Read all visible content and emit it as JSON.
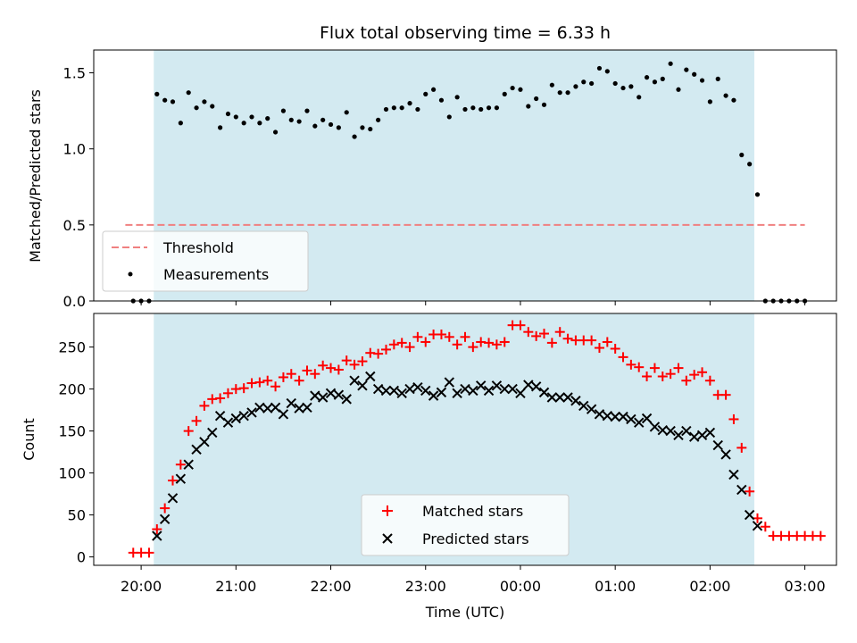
{
  "chart_data": [
    {
      "type": "scatter",
      "title": "Flux total observing time = 6.33 h",
      "xlabel": "",
      "ylabel": "Matched/Predicted stars",
      "ylim": [
        0,
        1.65
      ],
      "yticks": [
        0.0,
        0.5,
        1.0,
        1.5
      ],
      "ytick_labels": [
        "0.0",
        "0.5",
        "1.0",
        "1.5"
      ],
      "shaded_span": [
        "20:08",
        "02:28"
      ],
      "shade_color": "#d3eaf1",
      "threshold": {
        "name": "Threshold",
        "value": 0.5,
        "x_range": [
          "19:50",
          "03:00"
        ],
        "color": "#f08080"
      },
      "legend": {
        "position": "lower-left",
        "entries": [
          "Threshold",
          "Measurements"
        ]
      },
      "series": [
        {
          "name": "Measurements",
          "color": "#000000",
          "marker": "dot",
          "points": [
            [
              "19:55",
              0
            ],
            [
              "20:00",
              0
            ],
            [
              "20:05",
              0
            ],
            [
              "20:10",
              1.36
            ],
            [
              "20:15",
              1.32
            ],
            [
              "20:20",
              1.31
            ],
            [
              "20:25",
              1.17
            ],
            [
              "20:30",
              1.37
            ],
            [
              "20:35",
              1.27
            ],
            [
              "20:40",
              1.31
            ],
            [
              "20:45",
              1.28
            ],
            [
              "20:50",
              1.14
            ],
            [
              "20:55",
              1.23
            ],
            [
              "21:00",
              1.21
            ],
            [
              "21:05",
              1.17
            ],
            [
              "21:10",
              1.21
            ],
            [
              "21:15",
              1.17
            ],
            [
              "21:20",
              1.2
            ],
            [
              "21:25",
              1.11
            ],
            [
              "21:30",
              1.25
            ],
            [
              "21:35",
              1.19
            ],
            [
              "21:40",
              1.18
            ],
            [
              "21:45",
              1.25
            ],
            [
              "21:50",
              1.15
            ],
            [
              "21:55",
              1.19
            ],
            [
              "22:00",
              1.16
            ],
            [
              "22:05",
              1.14
            ],
            [
              "22:10",
              1.24
            ],
            [
              "22:15",
              1.08
            ],
            [
              "22:20",
              1.14
            ],
            [
              "22:25",
              1.13
            ],
            [
              "22:30",
              1.19
            ],
            [
              "22:35",
              1.26
            ],
            [
              "22:40",
              1.27
            ],
            [
              "22:45",
              1.27
            ],
            [
              "22:50",
              1.3
            ],
            [
              "22:55",
              1.26
            ],
            [
              "23:00",
              1.36
            ],
            [
              "23:05",
              1.39
            ],
            [
              "23:10",
              1.32
            ],
            [
              "23:15",
              1.21
            ],
            [
              "23:20",
              1.34
            ],
            [
              "23:25",
              1.26
            ],
            [
              "23:30",
              1.27
            ],
            [
              "23:35",
              1.26
            ],
            [
              "23:40",
              1.27
            ],
            [
              "23:45",
              1.27
            ],
            [
              "23:50",
              1.36
            ],
            [
              "23:55",
              1.4
            ],
            [
              "00:00",
              1.39
            ],
            [
              "00:05",
              1.28
            ],
            [
              "00:10",
              1.33
            ],
            [
              "00:15",
              1.29
            ],
            [
              "00:20",
              1.42
            ],
            [
              "00:25",
              1.37
            ],
            [
              "00:30",
              1.37
            ],
            [
              "00:35",
              1.41
            ],
            [
              "00:40",
              1.44
            ],
            [
              "00:45",
              1.43
            ],
            [
              "00:50",
              1.53
            ],
            [
              "00:55",
              1.51
            ],
            [
              "01:00",
              1.43
            ],
            [
              "01:05",
              1.4
            ],
            [
              "01:10",
              1.41
            ],
            [
              "01:15",
              1.34
            ],
            [
              "01:20",
              1.47
            ],
            [
              "01:25",
              1.44
            ],
            [
              "01:30",
              1.46
            ],
            [
              "01:35",
              1.56
            ],
            [
              "01:40",
              1.39
            ],
            [
              "01:45",
              1.52
            ],
            [
              "01:50",
              1.49
            ],
            [
              "01:55",
              1.45
            ],
            [
              "02:00",
              1.31
            ],
            [
              "02:05",
              1.46
            ],
            [
              "02:10",
              1.35
            ],
            [
              "02:15",
              1.32
            ],
            [
              "02:20",
              0.96
            ],
            [
              "02:25",
              0.9
            ],
            [
              "02:30",
              0.7
            ],
            [
              "02:35",
              0
            ],
            [
              "02:40",
              0
            ],
            [
              "02:45",
              0
            ],
            [
              "02:50",
              0
            ],
            [
              "02:55",
              0
            ],
            [
              "03:00",
              0
            ]
          ]
        }
      ]
    },
    {
      "type": "scatter",
      "title": "",
      "xlabel": "Time (UTC)",
      "ylabel": "Count",
      "ylim": [
        -10,
        290
      ],
      "yticks": [
        0,
        50,
        100,
        150,
        200,
        250
      ],
      "ytick_labels": [
        "0",
        "50",
        "100",
        "150",
        "200",
        "250"
      ],
      "xlim": [
        "19:30",
        "03:20"
      ],
      "xticks": [
        "20:00",
        "21:00",
        "22:00",
        "23:00",
        "00:00",
        "01:00",
        "02:00",
        "03:00"
      ],
      "xtick_labels": [
        "20:00",
        "21:00",
        "22:00",
        "23:00",
        "00:00",
        "01:00",
        "02:00",
        "03:00"
      ],
      "shaded_span": [
        "20:08",
        "02:28"
      ],
      "shade_color": "#d3eaf1",
      "legend": {
        "position": "lower-center",
        "entries": [
          "Matched stars",
          "Predicted stars"
        ]
      },
      "series": [
        {
          "name": "Matched stars",
          "color": "#ff0000",
          "marker": "plus",
          "points": [
            [
              "19:55",
              5
            ],
            [
              "20:00",
              5
            ],
            [
              "20:05",
              5
            ],
            [
              "20:10",
              33
            ],
            [
              "20:15",
              58
            ],
            [
              "20:20",
              91
            ],
            [
              "20:25",
              110
            ],
            [
              "20:30",
              150
            ],
            [
              "20:35",
              162
            ],
            [
              "20:40",
              180
            ],
            [
              "20:45",
              188
            ],
            [
              "20:50",
              189
            ],
            [
              "20:55",
              195
            ],
            [
              "21:00",
              200
            ],
            [
              "21:05",
              201
            ],
            [
              "21:10",
              207
            ],
            [
              "21:15",
              208
            ],
            [
              "21:20",
              210
            ],
            [
              "21:25",
              203
            ],
            [
              "21:30",
              214
            ],
            [
              "21:35",
              218
            ],
            [
              "21:40",
              210
            ],
            [
              "21:45",
              222
            ],
            [
              "21:50",
              218
            ],
            [
              "21:55",
              228
            ],
            [
              "22:00",
              225
            ],
            [
              "22:05",
              223
            ],
            [
              "22:10",
              234
            ],
            [
              "22:15",
              229
            ],
            [
              "22:20",
              233
            ],
            [
              "22:25",
              243
            ],
            [
              "22:30",
              242
            ],
            [
              "22:35",
              247
            ],
            [
              "22:40",
              253
            ],
            [
              "22:45",
              255
            ],
            [
              "22:50",
              250
            ],
            [
              "22:55",
              262
            ],
            [
              "23:00",
              256
            ],
            [
              "23:05",
              265
            ],
            [
              "23:10",
              265
            ],
            [
              "23:15",
              262
            ],
            [
              "23:20",
              253
            ],
            [
              "23:25",
              262
            ],
            [
              "23:30",
              250
            ],
            [
              "23:35",
              256
            ],
            [
              "23:40",
              255
            ],
            [
              "23:45",
              253
            ],
            [
              "23:50",
              256
            ],
            [
              "23:55",
              276
            ],
            [
              "00:00",
              276
            ],
            [
              "00:05",
              268
            ],
            [
              "00:10",
              263
            ],
            [
              "00:15",
              266
            ],
            [
              "00:20",
              255
            ],
            [
              "00:25",
              268
            ],
            [
              "00:30",
              260
            ],
            [
              "00:35",
              258
            ],
            [
              "00:40",
              258
            ],
            [
              "00:45",
              258
            ],
            [
              "00:50",
              249
            ],
            [
              "00:55",
              256
            ],
            [
              "01:00",
              248
            ],
            [
              "01:05",
              238
            ],
            [
              "01:10",
              229
            ],
            [
              "01:15",
              226
            ],
            [
              "01:20",
              215
            ],
            [
              "01:25",
              225
            ],
            [
              "01:30",
              215
            ],
            [
              "01:35",
              218
            ],
            [
              "01:40",
              225
            ],
            [
              "01:45",
              210
            ],
            [
              "01:50",
              217
            ],
            [
              "01:55",
              220
            ],
            [
              "02:00",
              210
            ],
            [
              "02:05",
              193
            ],
            [
              "02:10",
              193
            ],
            [
              "02:15",
              164
            ],
            [
              "02:20",
              130
            ],
            [
              "02:25",
              78
            ],
            [
              "02:30",
              46
            ],
            [
              "02:35",
              36
            ],
            [
              "02:40",
              25
            ],
            [
              "02:45",
              25
            ],
            [
              "02:50",
              25
            ],
            [
              "02:55",
              25
            ],
            [
              "03:00",
              25
            ],
            [
              "03:05",
              25
            ],
            [
              "03:10",
              25
            ]
          ]
        },
        {
          "name": "Predicted stars",
          "color": "#000000",
          "marker": "x",
          "points": [
            [
              "20:10",
              25
            ],
            [
              "20:15",
              45
            ],
            [
              "20:20",
              70
            ],
            [
              "20:25",
              93
            ],
            [
              "20:30",
              110
            ],
            [
              "20:35",
              128
            ],
            [
              "20:40",
              137
            ],
            [
              "20:45",
              148
            ],
            [
              "20:50",
              168
            ],
            [
              "20:55",
              160
            ],
            [
              "21:00",
              165
            ],
            [
              "21:05",
              168
            ],
            [
              "21:10",
              172
            ],
            [
              "21:15",
              178
            ],
            [
              "21:20",
              177
            ],
            [
              "21:25",
              178
            ],
            [
              "21:30",
              170
            ],
            [
              "21:35",
              183
            ],
            [
              "21:40",
              177
            ],
            [
              "21:45",
              178
            ],
            [
              "21:50",
              192
            ],
            [
              "21:55",
              190
            ],
            [
              "22:00",
              195
            ],
            [
              "22:05",
              193
            ],
            [
              "22:10",
              188
            ],
            [
              "22:15",
              210
            ],
            [
              "22:20",
              204
            ],
            [
              "22:25",
              215
            ],
            [
              "22:30",
              200
            ],
            [
              "22:35",
              198
            ],
            [
              "22:40",
              198
            ],
            [
              "22:45",
              195
            ],
            [
              "22:50",
              200
            ],
            [
              "22:55",
              202
            ],
            [
              "23:00",
              198
            ],
            [
              "23:05",
              192
            ],
            [
              "23:10",
              196
            ],
            [
              "23:15",
              208
            ],
            [
              "23:20",
              195
            ],
            [
              "23:25",
              200
            ],
            [
              "23:30",
              198
            ],
            [
              "23:35",
              204
            ],
            [
              "23:40",
              198
            ],
            [
              "23:45",
              204
            ],
            [
              "23:50",
              200
            ],
            [
              "23:55",
              200
            ],
            [
              "00:00",
              195
            ],
            [
              "00:05",
              205
            ],
            [
              "00:10",
              203
            ],
            [
              "00:15",
              196
            ],
            [
              "00:20",
              190
            ],
            [
              "00:25",
              190
            ],
            [
              "00:30",
              190
            ],
            [
              "00:35",
              186
            ],
            [
              "00:40",
              180
            ],
            [
              "00:45",
              176
            ],
            [
              "00:50",
              170
            ],
            [
              "00:55",
              168
            ],
            [
              "01:00",
              167
            ],
            [
              "01:05",
              167
            ],
            [
              "01:10",
              164
            ],
            [
              "01:15",
              160
            ],
            [
              "01:20",
              165
            ],
            [
              "01:25",
              155
            ],
            [
              "01:30",
              151
            ],
            [
              "01:35",
              150
            ],
            [
              "01:40",
              145
            ],
            [
              "01:45",
              150
            ],
            [
              "01:50",
              143
            ],
            [
              "01:55",
              145
            ],
            [
              "02:00",
              148
            ],
            [
              "02:05",
              133
            ],
            [
              "02:10",
              122
            ],
            [
              "02:15",
              98
            ],
            [
              "02:20",
              80
            ],
            [
              "02:25",
              50
            ],
            [
              "02:30",
              37
            ]
          ]
        }
      ]
    }
  ]
}
